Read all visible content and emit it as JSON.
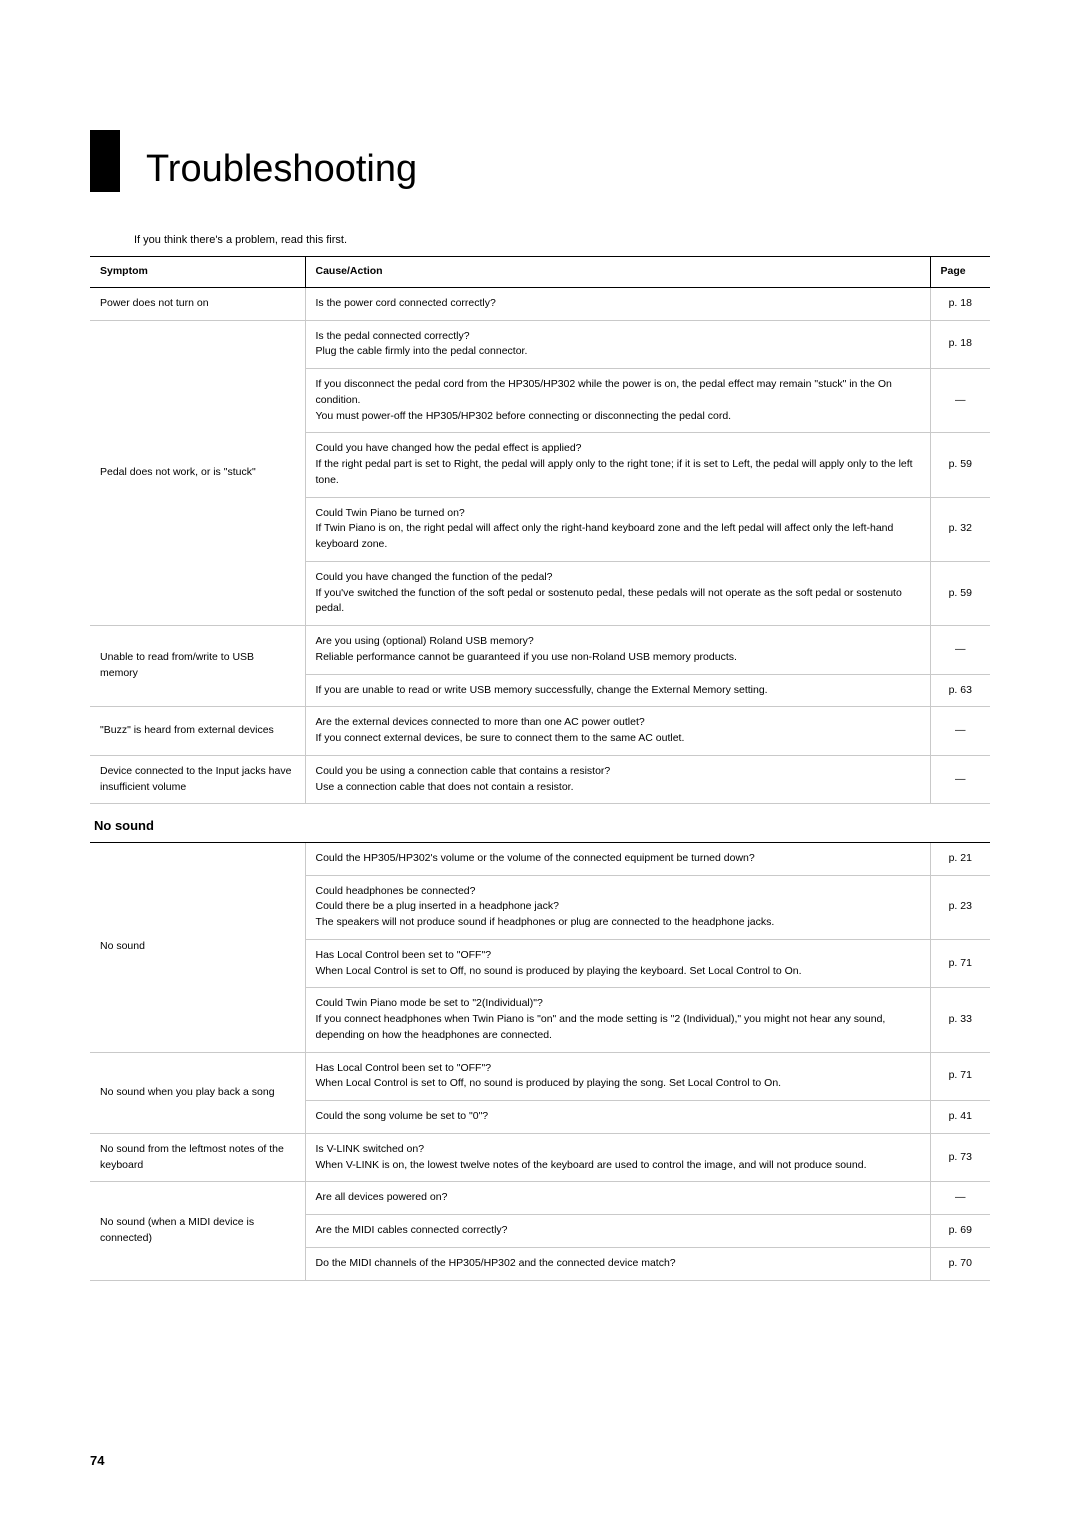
{
  "title": "Troubleshooting",
  "intro": "If you think there's a problem, read this first.",
  "headers": {
    "symptom": "Symptom",
    "cause": "Cause/Action",
    "page": "Page"
  },
  "dash": "—",
  "section2_title": "No sound",
  "rows1": [
    {
      "symptom": "Power does not turn on",
      "cause": "Is the power cord connected correctly?",
      "page": "p. 18",
      "rowspan": 1
    },
    {
      "symptom": "Pedal does not work, or is \"stuck\"",
      "cause": "Is the pedal connected correctly?\nPlug the cable firmly into the pedal connector.",
      "page": "p. 18",
      "rowspan": 5
    },
    {
      "cause": "If you disconnect the pedal cord from the HP305/HP302 while the power is on, the pedal effect may remain \"stuck\" in the On condition.\nYou must power-off the HP305/HP302 before connecting or disconnecting the pedal cord.",
      "page": "—"
    },
    {
      "cause": "Could you have changed how the pedal effect is applied?\nIf the right pedal part is set to Right, the pedal will apply only to the right tone; if it is set to Left, the pedal will apply only to the left tone.",
      "page": "p. 59"
    },
    {
      "cause": "Could Twin Piano be turned on?\nIf Twin Piano is on, the right pedal will affect only the right-hand keyboard zone and the left pedal will affect only the left-hand keyboard zone.",
      "page": "p. 32"
    },
    {
      "cause": "Could you have changed the function of the pedal?\nIf you've switched the function of the soft pedal or sostenuto pedal, these pedals will not operate as the soft pedal or sostenuto pedal.",
      "page": "p. 59"
    },
    {
      "symptom": "Unable to read from/write to USB memory",
      "cause": "Are you using (optional) Roland USB memory?\nReliable performance cannot be guaranteed if you use non-Roland USB memory products.",
      "page": "—",
      "rowspan": 2
    },
    {
      "cause": "If you are unable to read or write USB memory successfully, change the External Memory setting.",
      "page": "p. 63"
    },
    {
      "symptom": "\"Buzz\" is heard from external devices",
      "cause": "Are the external devices connected to more than one AC power outlet?\nIf you connect external devices, be sure to connect them to the same AC outlet.",
      "page": "—",
      "rowspan": 1
    },
    {
      "symptom": "Device connected to the Input jacks have insufficient volume",
      "cause": "Could you be using a connection cable that contains a resistor?\nUse a connection cable that does not contain a resistor.",
      "page": "—",
      "rowspan": 1
    }
  ],
  "rows2": [
    {
      "symptom": "No sound",
      "cause": "Could the HP305/HP302's volume or the volume of the connected equipment be turned down?",
      "page": "p. 21",
      "rowspan": 4
    },
    {
      "cause": "Could headphones be connected?\nCould there be a plug inserted in a headphone jack?\nThe speakers will not produce sound if headphones or plug are connected to the headphone jacks.",
      "page": "p. 23"
    },
    {
      "cause": "Has Local Control been set to \"OFF\"?\nWhen Local Control is set to Off, no sound is produced by playing the keyboard. Set Local Control to On.",
      "page": "p. 71"
    },
    {
      "cause": "Could Twin Piano mode be set to \"2(Individual)\"?\nIf you connect headphones when Twin Piano is \"on\" and the mode setting is \"2 (Individual),\" you might not hear any sound, depending on how the headphones are connected.",
      "page": "p. 33"
    },
    {
      "symptom": "No sound when you play back a song",
      "cause": "Has Local Control been set to \"OFF\"?\nWhen Local Control is set to Off, no sound is produced by playing the song. Set Local Control to On.",
      "page": "p. 71",
      "rowspan": 2
    },
    {
      "cause": "Could the song volume be set to \"0\"?",
      "page": "p. 41"
    },
    {
      "symptom": "No sound from the leftmost notes of the keyboard",
      "cause": "Is V-LINK switched on?\nWhen V-LINK is on, the lowest twelve notes of the keyboard are used to control the image, and will not produce sound.",
      "page": "p. 73",
      "rowspan": 1
    },
    {
      "symptom": "No sound (when a MIDI device is connected)",
      "cause": "Are all devices powered on?",
      "page": "—",
      "rowspan": 3
    },
    {
      "cause": "Are the MIDI cables connected correctly?",
      "page": "p. 69"
    },
    {
      "cause": "Do the MIDI channels of the HP305/HP302 and the connected device match?",
      "page": "p. 70"
    }
  ],
  "page_number": "74"
}
